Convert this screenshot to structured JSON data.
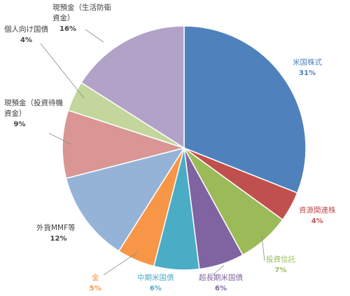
{
  "chart_data": {
    "type": "pie",
    "title": "",
    "slices": [
      {
        "label_lines": [
          "米国株式"
        ],
        "value": 31,
        "value_label": "31%",
        "color": "#4f81bd",
        "text_color": "#4f81bd"
      },
      {
        "label_lines": [
          "資源関連株"
        ],
        "value": 4,
        "value_label": "4%",
        "color": "#c0504d",
        "text_color": "#c0504d"
      },
      {
        "label_lines": [
          "投資信託"
        ],
        "value": 7,
        "value_label": "7%",
        "color": "#9bbb59",
        "text_color": "#9bbb59"
      },
      {
        "label_lines": [
          "超長期米国債"
        ],
        "value": 6,
        "value_label": "6%",
        "color": "#8064a2",
        "text_color": "#8064a2"
      },
      {
        "label_lines": [
          "中期米国債"
        ],
        "value": 6,
        "value_label": "6%",
        "color": "#4bacc6",
        "text_color": "#4bacc6"
      },
      {
        "label_lines": [
          "金"
        ],
        "value": 5,
        "value_label": "5%",
        "color": "#f79646",
        "text_color": "#f79646"
      },
      {
        "label_lines": [
          "外貨MMF等"
        ],
        "value": 12,
        "value_label": "12%",
        "color": "#95b3d7",
        "text_color": "#404040"
      },
      {
        "label_lines": [
          "現預金（投資待機",
          "資金）"
        ],
        "value": 9,
        "value_label": "9%",
        "color": "#d99694",
        "text_color": "#404040"
      },
      {
        "label_lines": [
          "個人向け国債"
        ],
        "value": 4,
        "value_label": "4%",
        "color": "#c3d69b",
        "text_color": "#404040"
      },
      {
        "label_lines": [
          "現預金（生活防衛",
          "資金）"
        ],
        "value": 16,
        "value_label": "16%",
        "color": "#b2a2c7",
        "text_color": "#404040"
      }
    ]
  }
}
